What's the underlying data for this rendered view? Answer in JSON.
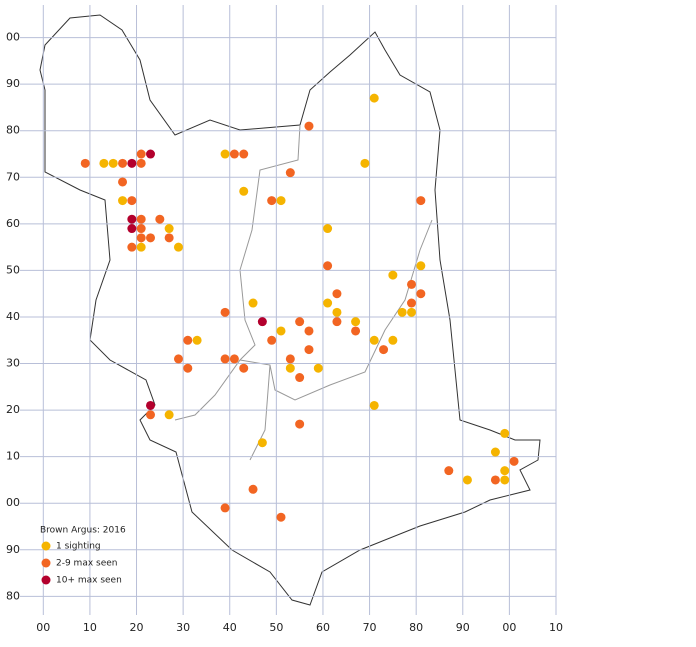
{
  "chart_data": {
    "type": "scatter",
    "title": "Brown Argus:  2016",
    "xlim": [
      -5,
      110
    ],
    "ylim": [
      76,
      207
    ],
    "xticks": [
      {
        "value": 0,
        "label": "00"
      },
      10,
      20,
      30,
      40,
      50,
      60,
      70,
      80,
      90,
      {
        "value": 100,
        "label": "00"
      },
      {
        "value": 110,
        "label": "10"
      }
    ],
    "yticks": [
      80,
      90,
      {
        "value": 100,
        "label": "00"
      },
      {
        "value": 110,
        "label": "10"
      },
      {
        "value": 120,
        "label": "20"
      },
      {
        "value": 130,
        "label": "30"
      },
      {
        "value": 140,
        "label": "40"
      },
      {
        "value": 150,
        "label": "50"
      },
      {
        "value": 160,
        "label": "60"
      },
      {
        "value": 170,
        "label": "70"
      },
      {
        "value": 180,
        "label": "80"
      },
      {
        "value": 190,
        "label": "90"
      },
      {
        "value": 200,
        "label": "00"
      }
    ],
    "grid": true,
    "legend": "bottom-left",
    "series": [
      {
        "name": "1 sighting",
        "color": "#f5b400",
        "x": [
          71,
          13,
          15,
          39,
          69,
          43,
          17,
          51,
          61,
          27,
          21,
          29,
          81,
          75,
          45,
          61,
          63,
          77,
          79,
          67,
          51,
          33,
          71,
          75,
          53,
          59,
          71,
          27,
          47,
          99,
          97,
          99,
          91,
          99
        ],
        "values": [
          187,
          173,
          173,
          175,
          173,
          167,
          165,
          165,
          159,
          159,
          155,
          155,
          151,
          149,
          143,
          143,
          141,
          141,
          141,
          139,
          137,
          135,
          135,
          135,
          129,
          129,
          121,
          119,
          113,
          115,
          111,
          107,
          105,
          105
        ]
      },
      {
        "name": "2-9 max seen",
        "color": "#f26522",
        "x": [
          9,
          17,
          21,
          21,
          41,
          43,
          17,
          53,
          57,
          19,
          49,
          81,
          21,
          25,
          21,
          21,
          23,
          27,
          19,
          61,
          79,
          63,
          81,
          79,
          39,
          55,
          63,
          57,
          67,
          31,
          49,
          57,
          73,
          29,
          39,
          41,
          53,
          31,
          43,
          55,
          23,
          55,
          101,
          87,
          97,
          45,
          39,
          51
        ],
        "values": [
          173,
          173,
          173,
          175,
          175,
          175,
          169,
          171,
          181,
          165,
          165,
          165,
          161,
          161,
          159,
          157,
          157,
          157,
          155,
          151,
          147,
          145,
          145,
          143,
          141,
          139,
          139,
          137,
          137,
          135,
          135,
          133,
          133,
          131,
          131,
          131,
          131,
          129,
          129,
          127,
          119,
          117,
          109,
          107,
          105,
          103,
          99,
          97
        ]
      },
      {
        "name": "10+ max seen",
        "color": "#b3002d",
        "x": [
          19,
          23,
          19,
          19,
          47,
          23
        ],
        "values": [
          173,
          175,
          161,
          159,
          139,
          121
        ]
      }
    ]
  }
}
